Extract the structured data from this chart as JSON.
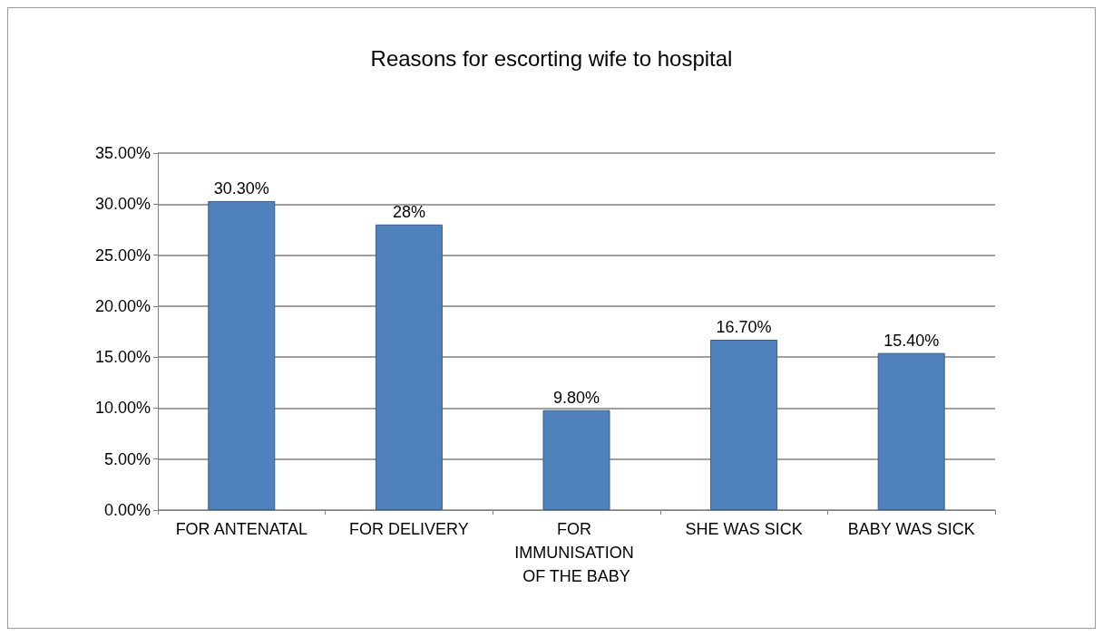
{
  "chart_data": {
    "type": "bar",
    "title": "Reasons for escorting wife to hospital",
    "categories": [
      "FOR ANTENATAL",
      "FOR DELIVERY",
      "FOR IMMUNISATION OF THE BABY",
      "SHE WAS SICK",
      "BABY WAS SICK"
    ],
    "values": [
      30.3,
      28,
      9.8,
      16.7,
      15.4
    ],
    "value_labels": [
      "30.30%",
      "28%",
      "9.80%",
      "16.70%",
      "15.40%"
    ],
    "color": "#4f81bd",
    "ylim": [
      0,
      35
    ],
    "yticks": [
      {
        "value": 0,
        "label": "0.00%"
      },
      {
        "value": 5,
        "label": "5.00%"
      },
      {
        "value": 10,
        "label": "10.00%"
      },
      {
        "value": 15,
        "label": "15.00%"
      },
      {
        "value": 20,
        "label": "20.00%"
      },
      {
        "value": 25,
        "label": "25.00%"
      },
      {
        "value": 30,
        "label": "30.00%"
      },
      {
        "value": 35,
        "label": "35.00%"
      }
    ],
    "grid": "y"
  }
}
